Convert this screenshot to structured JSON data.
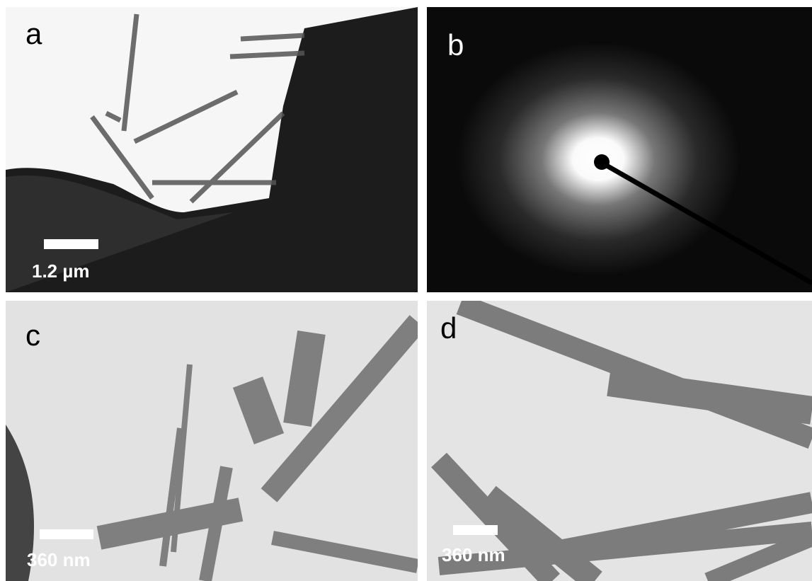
{
  "panels": [
    {
      "label": "a",
      "scale_bar": "1.2 µm"
    },
    {
      "label": "b"
    },
    {
      "label": "c",
      "scale_bar": "360 nm"
    },
    {
      "label": "d",
      "scale_bar": "360 nm"
    }
  ]
}
